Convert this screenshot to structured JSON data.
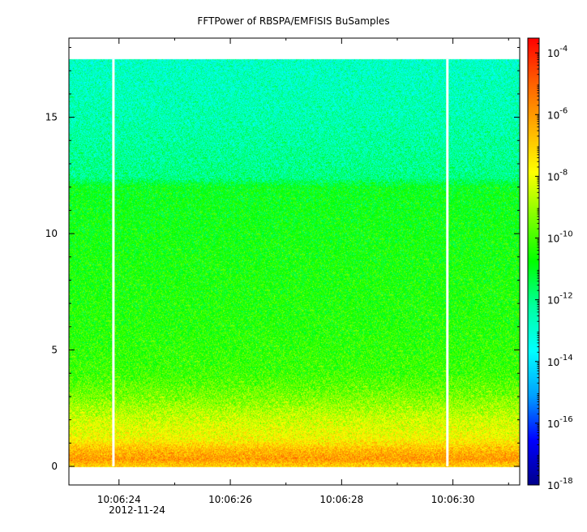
{
  "chart_data": {
    "type": "heatmap",
    "title": "FFTPower of RBSPA/EMFISIS  BuSamples",
    "date_label": "2012-11-24",
    "x_ticks": [
      "10:06:24",
      "10:06:26",
      "10:06:28",
      "10:06:30"
    ],
    "x_range": [
      "10:06:23.1",
      "10:06:31.2"
    ],
    "y_ticks": [
      0,
      5,
      10,
      15
    ],
    "y_range": [
      -0.8,
      18.4
    ],
    "data_y_range": [
      0,
      17.5
    ],
    "gaps_at": [
      "10:06:23.9",
      "10:06:29.9"
    ],
    "colorbar": {
      "scale": "log",
      "range": [
        1e-18,
        0.0003
      ],
      "tick_exponents": [
        -18,
        -16,
        -14,
        -12,
        -10,
        -8,
        -6,
        -4
      ],
      "tick_base": "10",
      "colors": [
        "#00008b",
        "#0000ff",
        "#00a0ff",
        "#00ffff",
        "#00ff9f",
        "#00ff00",
        "#80ff00",
        "#ffff00",
        "#ffb000",
        "#ff6000",
        "#ff0000"
      ]
    },
    "power_profile": [
      {
        "freq": 0.0,
        "log10_power": -7.0
      },
      {
        "freq": 0.3,
        "log10_power": -6.0
      },
      {
        "freq": 0.7,
        "log10_power": -6.6
      },
      {
        "freq": 1.2,
        "log10_power": -7.8
      },
      {
        "freq": 2.0,
        "log10_power": -8.4
      },
      {
        "freq": 3.0,
        "log10_power": -9.4
      },
      {
        "freq": 4.0,
        "log10_power": -10.1
      },
      {
        "freq": 6.0,
        "log10_power": -10.4
      },
      {
        "freq": 9.0,
        "log10_power": -10.6
      },
      {
        "freq": 12.0,
        "log10_power": -10.9
      },
      {
        "freq": 12.4,
        "log10_power": -12.0
      },
      {
        "freq": 15.0,
        "log10_power": -12.5
      },
      {
        "freq": 17.5,
        "log10_power": -12.8
      }
    ]
  }
}
